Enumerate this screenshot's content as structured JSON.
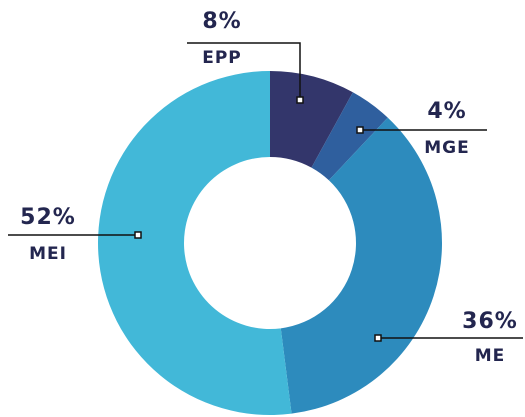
{
  "chart_data": {
    "type": "donut",
    "categories": [
      "EPP",
      "MGE",
      "ME",
      "MEI"
    ],
    "values": [
      8,
      4,
      36,
      52
    ],
    "value_labels": [
      "8%",
      "4%",
      "36%",
      "52%"
    ],
    "colors": [
      "#33366b",
      "#2f5f9e",
      "#2d8bbd",
      "#42b8d8"
    ]
  }
}
